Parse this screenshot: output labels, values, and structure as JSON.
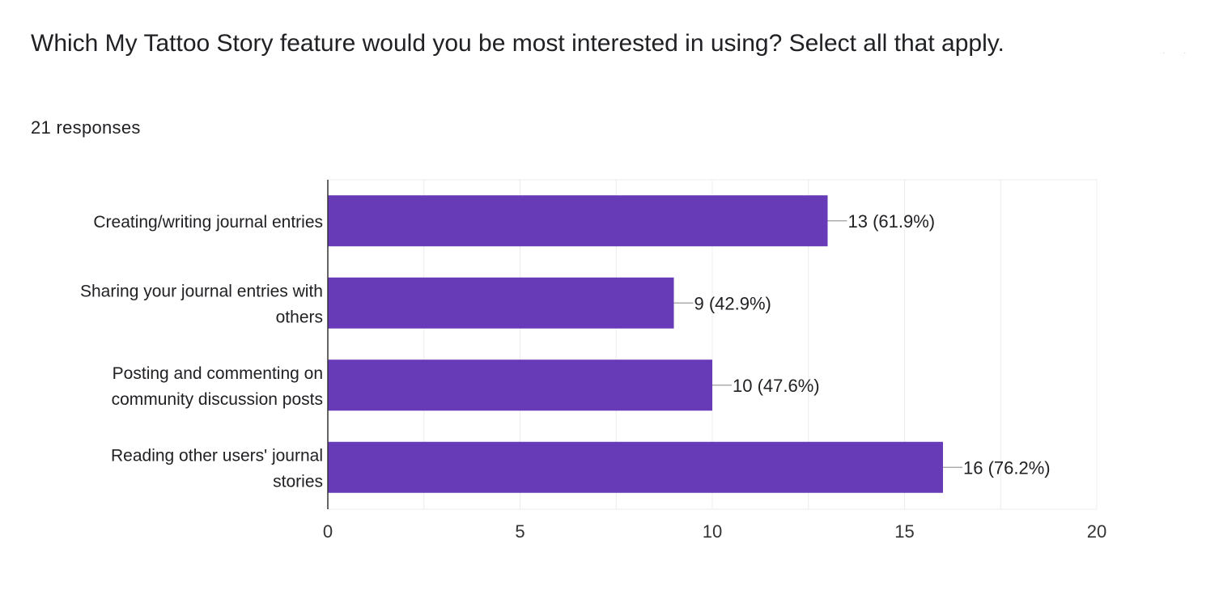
{
  "question": {
    "title": "Which My Tattoo Story feature would you be most interested in using? Select all that apply.",
    "responses": "21 responses"
  },
  "colors": {
    "bar": "#673ab7",
    "grid": "#ececec",
    "axis": "#333333",
    "leader": "#9e9e9e",
    "text": "#202124"
  },
  "chart_data": {
    "type": "bar",
    "orientation": "horizontal",
    "categories": [
      [
        "Creating/writing journal entries"
      ],
      [
        "Sharing your journal entries with",
        "others"
      ],
      [
        "Posting and commenting on",
        "community discussion posts"
      ],
      [
        "Reading other users' journal",
        "stories"
      ]
    ],
    "values": [
      13,
      9,
      10,
      16
    ],
    "data_labels": [
      "13 (61.9%)",
      "9 (42.9%)",
      "10 (47.6%)",
      "16 (76.2%)"
    ],
    "xlim": [
      0,
      20
    ],
    "xticks": [
      0,
      5,
      10,
      15,
      20
    ],
    "xtick_labels": [
      "0",
      "5",
      "10",
      "15",
      "20"
    ],
    "grid": true,
    "legend": "none"
  }
}
